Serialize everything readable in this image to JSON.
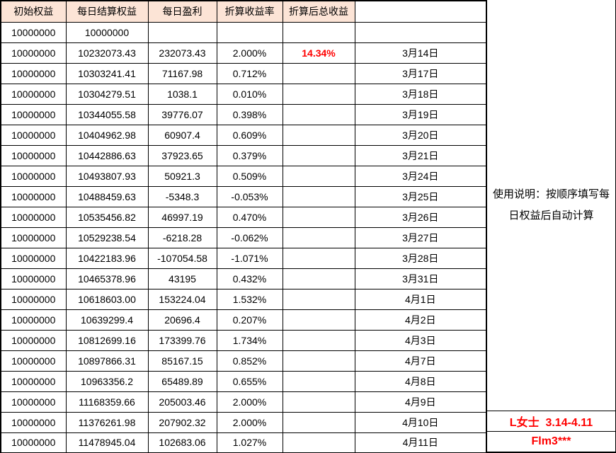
{
  "colors": {
    "header_bg": "#fce4d6",
    "accent_red": "#ff0000",
    "grid": "#000000"
  },
  "table": {
    "headers": [
      "初始权益",
      "每日结算权益",
      "每日盈利",
      "折算收益率",
      "折算后总收益",
      ""
    ],
    "rows": [
      [
        "10000000",
        "10000000",
        "",
        "",
        "",
        ""
      ],
      [
        "10000000",
        "10232073.43",
        "232073.43",
        "2.000%",
        "14.34%",
        "3月14日"
      ],
      [
        "10000000",
        "10303241.41",
        "71167.98",
        "0.712%",
        "",
        "3月17日"
      ],
      [
        "10000000",
        "10304279.51",
        "1038.1",
        "0.010%",
        "",
        "3月18日"
      ],
      [
        "10000000",
        "10344055.58",
        "39776.07",
        "0.398%",
        "",
        "3月19日"
      ],
      [
        "10000000",
        "10404962.98",
        "60907.4",
        "0.609%",
        "",
        "3月20日"
      ],
      [
        "10000000",
        "10442886.63",
        "37923.65",
        "0.379%",
        "",
        "3月21日"
      ],
      [
        "10000000",
        "10493807.93",
        "50921.3",
        "0.509%",
        "",
        "3月24日"
      ],
      [
        "10000000",
        "10488459.63",
        "-5348.3",
        "-0.053%",
        "",
        "3月25日"
      ],
      [
        "10000000",
        "10535456.82",
        "46997.19",
        "0.470%",
        "",
        "3月26日"
      ],
      [
        "10000000",
        "10529238.54",
        "-6218.28",
        "-0.062%",
        "",
        "3月27日"
      ],
      [
        "10000000",
        "10422183.96",
        "-107054.58",
        "-1.071%",
        "",
        "3月28日"
      ],
      [
        "10000000",
        "10465378.96",
        "43195",
        "0.432%",
        "",
        "3月31日"
      ],
      [
        "10000000",
        "10618603.00",
        "153224.04",
        "1.532%",
        "",
        "4月1日"
      ],
      [
        "10000000",
        "10639299.4",
        "20696.4",
        "0.207%",
        "",
        "4月2日"
      ],
      [
        "10000000",
        "10812699.16",
        "173399.76",
        "1.734%",
        "",
        "4月3日"
      ],
      [
        "10000000",
        "10897866.31",
        "85167.15",
        "0.852%",
        "",
        "4月7日"
      ],
      [
        "10000000",
        "10963356.2",
        "65489.89",
        "0.655%",
        "",
        "4月8日"
      ],
      [
        "10000000",
        "11168359.66",
        "205003.46",
        "2.000%",
        "",
        "4月9日"
      ],
      [
        "10000000",
        "11376261.98",
        "207902.32",
        "2.000%",
        "",
        "4月10日"
      ],
      [
        "10000000",
        "11478945.04",
        "102683.06",
        "1.027%",
        "",
        "4月11日"
      ]
    ]
  },
  "notes": {
    "instructions": "使用说明：按顺序填写每日权益后自动计算",
    "client": "L女士  3.14-4.11",
    "account": "Flm3***"
  }
}
